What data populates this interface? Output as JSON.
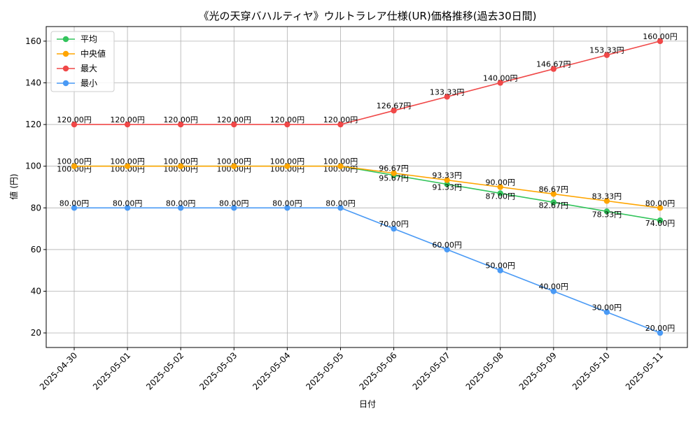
{
  "chart_data": {
    "type": "line",
    "title": "《光の天穿バハルティヤ》ウルトラレア仕様(UR)価格推移(過去30日間)",
    "xlabel": "日付",
    "ylabel": "値 (円)",
    "categories": [
      "2025-04-30",
      "2025-05-01",
      "2025-05-02",
      "2025-05-03",
      "2025-05-04",
      "2025-05-05",
      "2025-05-06",
      "2025-05-07",
      "2025-05-08",
      "2025-05-09",
      "2025-05-10",
      "2025-05-11"
    ],
    "ylim": [
      13,
      167
    ],
    "yticks": [
      20,
      40,
      60,
      80,
      100,
      120,
      140,
      160
    ],
    "grid": true,
    "legend_position": "top-left",
    "label_suffix": "円",
    "series": [
      {
        "name": "平均",
        "color": "#33c45c",
        "label_above": false,
        "values": [
          100,
          100,
          100,
          100,
          100,
          100,
          95.67,
          91.33,
          87.0,
          82.67,
          78.33,
          74.0
        ]
      },
      {
        "name": "中央値",
        "color": "#ffa500",
        "label_above": true,
        "values": [
          100,
          100,
          100,
          100,
          100,
          100,
          96.67,
          93.33,
          90.0,
          86.67,
          83.33,
          80.0
        ]
      },
      {
        "name": "最大",
        "color": "#f04848",
        "label_above": true,
        "values": [
          120,
          120,
          120,
          120,
          120,
          120,
          126.67,
          133.33,
          140.0,
          146.67,
          153.33,
          160.0
        ]
      },
      {
        "name": "最小",
        "color": "#4a9af5",
        "label_above": true,
        "values": [
          80,
          80,
          80,
          80,
          80,
          80,
          70.0,
          60.0,
          50.0,
          40.0,
          30.0,
          20.0
        ]
      }
    ]
  }
}
